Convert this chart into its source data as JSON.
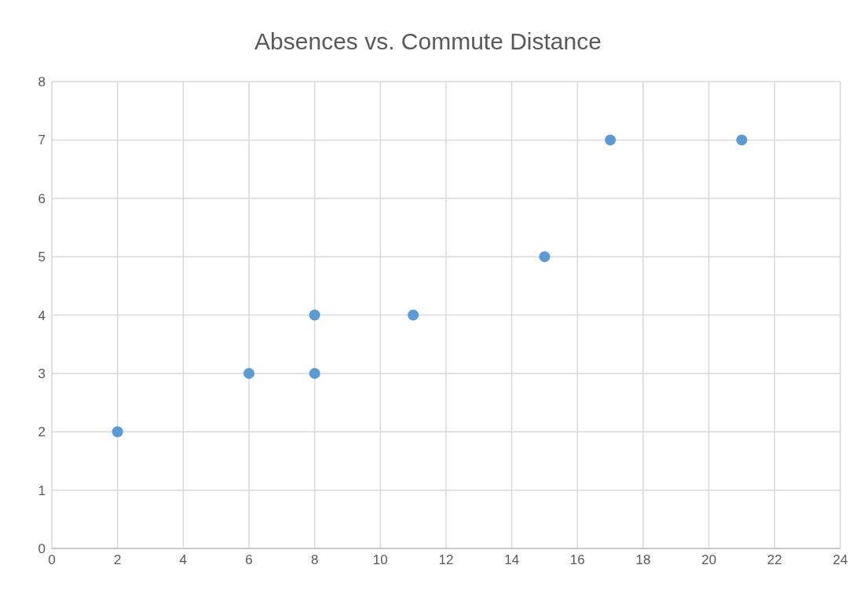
{
  "chart_data": {
    "type": "scatter",
    "title": "Absences vs. Commute Distance",
    "x": [
      2,
      6,
      8,
      8,
      11,
      15,
      17,
      21
    ],
    "values": [
      2,
      3,
      3,
      4,
      4,
      5,
      7,
      7
    ],
    "color": "#5b9bd5",
    "xlim": [
      0,
      24
    ],
    "xticks": [
      0,
      2,
      4,
      6,
      8,
      10,
      12,
      14,
      16,
      18,
      20,
      22,
      24
    ],
    "ylim": [
      0,
      8
    ],
    "yticks": [
      0,
      1,
      2,
      3,
      4,
      5,
      6,
      7,
      8
    ],
    "grid": true,
    "marker": "circle"
  }
}
